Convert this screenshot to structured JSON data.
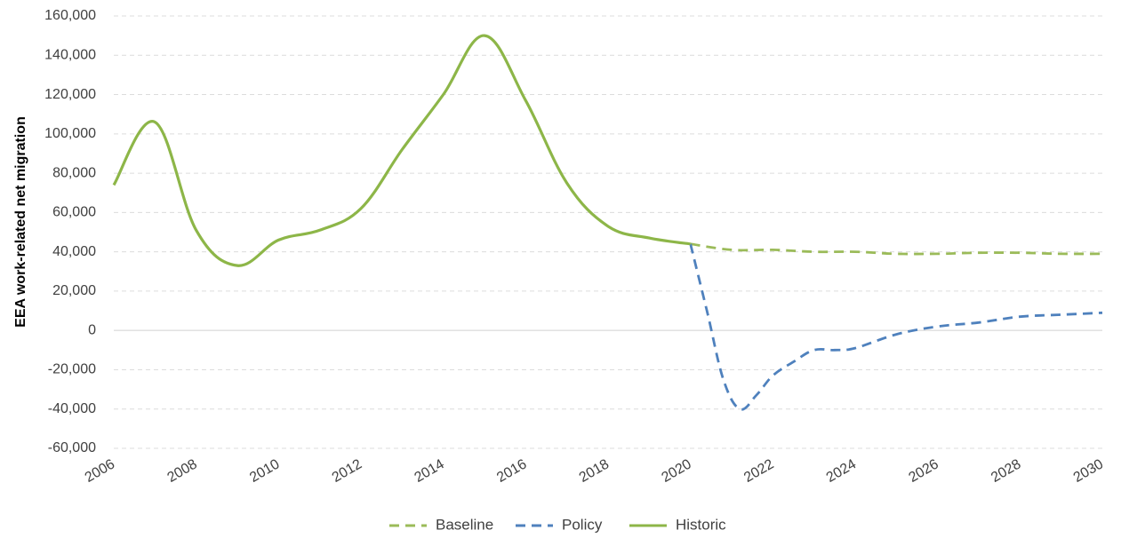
{
  "chart_data": {
    "type": "line",
    "title": "",
    "xlabel": "",
    "ylabel": "EEA work-related net migration",
    "xlim": [
      2006,
      2030
    ],
    "ylim": [
      -60000,
      160000
    ],
    "y_ticks": [
      -60000,
      -40000,
      -20000,
      0,
      20000,
      40000,
      60000,
      80000,
      100000,
      120000,
      140000,
      160000
    ],
    "y_tick_labels": [
      "-60,000",
      "-40,000",
      "-20,000",
      "0",
      "20,000",
      "40,000",
      "60,000",
      "80,000",
      "100,000",
      "120,000",
      "140,000",
      "160,000"
    ],
    "x_ticks": [
      2006,
      2008,
      2010,
      2012,
      2014,
      2016,
      2018,
      2020,
      2022,
      2024,
      2026,
      2028,
      2030
    ],
    "x_tick_labels": [
      "2006",
      "2008",
      "2010",
      "2012",
      "2014",
      "2016",
      "2018",
      "2020",
      "2022",
      "2024",
      "2026",
      "2028",
      "2030"
    ],
    "grid": "horizontal dashed",
    "legend_position": "bottom-center",
    "series": [
      {
        "name": "Baseline",
        "color": "#9BBB59",
        "style": "dashed",
        "x": [
          2020,
          2021,
          2022,
          2023,
          2024,
          2025,
          2026,
          2027,
          2028,
          2029,
          2030
        ],
        "y": [
          44000,
          41000,
          41000,
          40000,
          40000,
          39000,
          39000,
          39500,
          39500,
          39000,
          39000
        ]
      },
      {
        "name": "Policy",
        "color": "#4F81BD",
        "style": "dashed",
        "x": [
          2020,
          2020.4,
          2020.8,
          2021.2,
          2021.6,
          2022,
          2022.5,
          2023,
          2023.5,
          2024,
          2025,
          2026,
          2027,
          2028,
          2029,
          2030
        ],
        "y": [
          44000,
          10000,
          -25000,
          -40000,
          -33000,
          -23000,
          -16000,
          -10000,
          -10000,
          -9000,
          -2000,
          2000,
          4000,
          7000,
          8000,
          9000
        ]
      },
      {
        "name": "Historic",
        "color": "#8DB648",
        "style": "solid",
        "x": [
          2006,
          2007,
          2008,
          2009,
          2010,
          2011,
          2012,
          2013,
          2014,
          2015,
          2016,
          2017,
          2018,
          2019,
          2020
        ],
        "y": [
          74000,
          106000,
          51000,
          33000,
          46000,
          51000,
          62000,
          92000,
          120000,
          150000,
          117000,
          75000,
          53000,
          47000,
          44000
        ]
      }
    ]
  }
}
